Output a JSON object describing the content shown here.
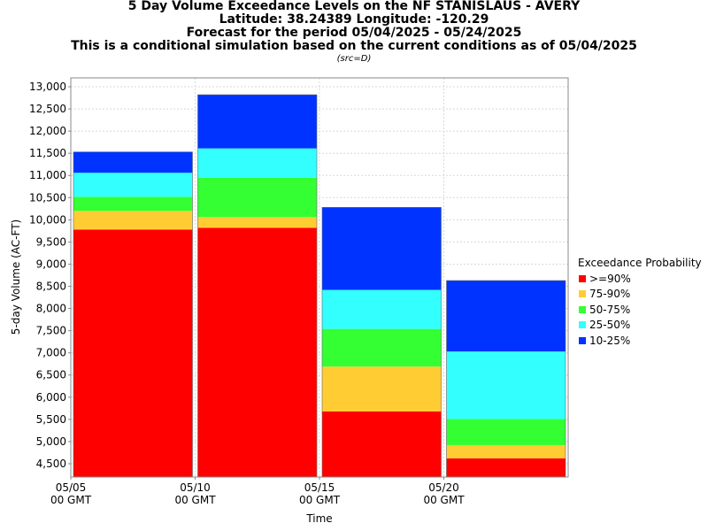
{
  "chart_data": {
    "type": "bar",
    "stacked": true,
    "title": [
      "5 Day Volume Exceedance Levels on the NF STANISLAUS - AVERY",
      "Latitude: 38.24389 Longitude: -120.29",
      "Forecast for the period 05/04/2025 - 05/24/2025",
      "This is a conditional simulation based on the current conditions as of 05/04/2025"
    ],
    "subtitle": "(src=D)",
    "xlabel": "Time",
    "ylabel": "5-day Volume (AC-FT)",
    "ylim": [
      4200,
      13200
    ],
    "yticks": [
      "4,500",
      "5,000",
      "5,500",
      "6,000",
      "6,500",
      "7,000",
      "7,500",
      "8,000",
      "8,500",
      "9,000",
      "9,500",
      "10,000",
      "10,500",
      "11,000",
      "11,500",
      "12,000",
      "12,500",
      "13,000"
    ],
    "ytick_values": [
      4500,
      5000,
      5500,
      6000,
      6500,
      7000,
      7500,
      8000,
      8500,
      9000,
      9500,
      10000,
      10500,
      11000,
      11500,
      12000,
      12500,
      13000
    ],
    "xlim": [
      "05/05 00 GMT",
      "05/25 00 GMT"
    ],
    "xticks": [
      {
        "day": 0,
        "line1": "05/05",
        "line2": "00 GMT"
      },
      {
        "day": 5,
        "line1": "05/10",
        "line2": "00 GMT"
      },
      {
        "day": 10,
        "line1": "05/15",
        "line2": "00 GMT"
      },
      {
        "day": 15,
        "line1": "05/20",
        "line2": "00 GMT"
      }
    ],
    "grid": true,
    "legend_title": "Exceedance Probability",
    "legend_position": "right",
    "series": [
      {
        "name": ">=90%",
        "color": "#ff0000"
      },
      {
        "name": "75-90%",
        "color": "#ffcc33"
      },
      {
        "name": "50-75%",
        "color": "#33ff33"
      },
      {
        "name": "25-50%",
        "color": "#33ffff"
      },
      {
        "name": "10-25%",
        "color": "#0033ff"
      }
    ],
    "bars": [
      {
        "period": "05/05 - 05/10",
        "start_day": 0,
        "end_day": 5,
        "levels": [
          9780,
          10200,
          10520,
          11060,
          11530
        ]
      },
      {
        "period": "05/10 - 05/15",
        "start_day": 5,
        "end_day": 10,
        "levels": [
          9820,
          10060,
          10950,
          11610,
          12820
        ]
      },
      {
        "period": "05/15 - 05/20",
        "start_day": 10,
        "end_day": 15,
        "levels": [
          5680,
          6690,
          7540,
          8420,
          10280
        ]
      },
      {
        "period": "05/20 - 05/25",
        "start_day": 15,
        "end_day": 20,
        "levels": [
          4620,
          4920,
          5510,
          7030,
          8630
        ]
      }
    ]
  }
}
